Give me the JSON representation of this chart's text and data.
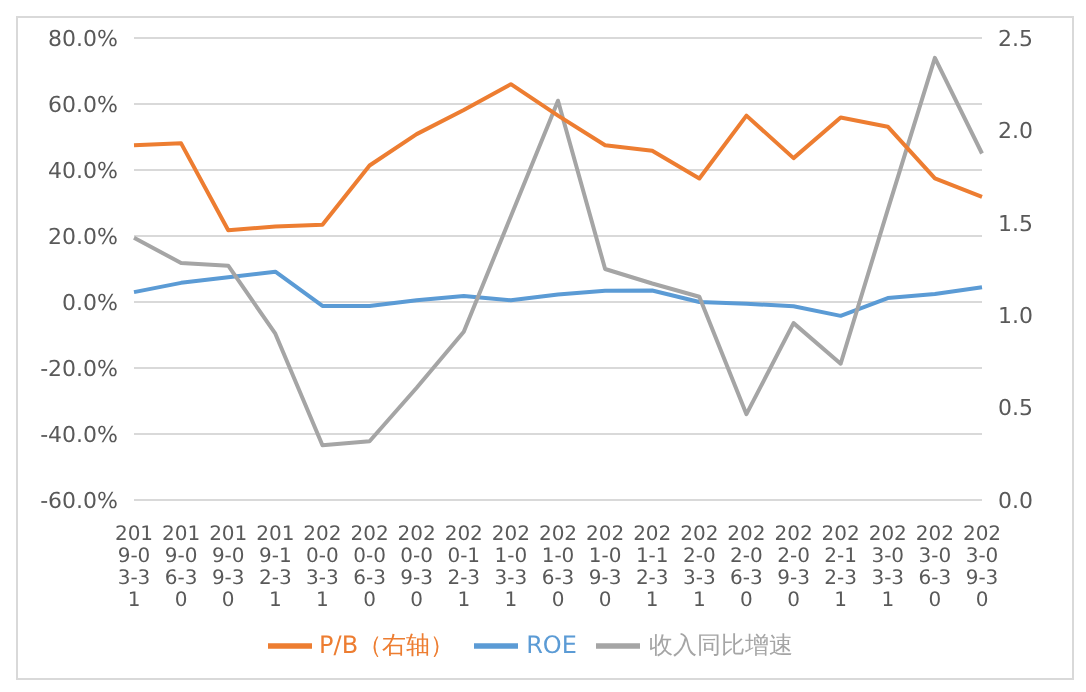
{
  "chart_data": {
    "type": "line",
    "categories": [
      "2019-03-31",
      "2019-06-30",
      "2019-09-30",
      "2019-12-31",
      "2020-03-31",
      "2020-06-30",
      "2020-09-30",
      "2020-12-31",
      "2021-03-31",
      "2021-06-30",
      "2021-09-30",
      "2021-12-31",
      "2022-03-31",
      "2022-06-30",
      "2022-09-30",
      "2022-12-31",
      "2023-03-31",
      "2023-06-30",
      "2023-09-30"
    ],
    "series": [
      {
        "name": "ROE",
        "color": "#5b9bd5",
        "values": [
          3.0,
          5.8,
          7.5,
          9.2,
          -1.2,
          -1.2,
          0.5,
          1.8,
          0.5,
          2.3,
          3.4,
          3.5,
          0,
          -0.5,
          -1.3,
          -4.2,
          1.2,
          2.4,
          4.5
        ]
      },
      {
        "name": "收入同比增速",
        "color": "#a5a5a5",
        "values": [
          19.5,
          11.8,
          11,
          -9.6,
          -43.4,
          -42.2,
          -26,
          -9,
          26,
          61,
          10,
          5.6,
          1.6,
          -34,
          -6.4,
          -18.7,
          28,
          74,
          45
        ]
      },
      {
        "name": "P/B（右轴）",
        "color": "#ed7d31",
        "axis": "y2",
        "values": [
          1.92,
          1.93,
          1.46,
          1.48,
          1.49,
          1.81,
          1.98,
          2.11,
          2.25,
          2.08,
          1.92,
          1.89,
          1.74,
          2.08,
          1.85,
          2.07,
          2.02,
          1.74,
          1.64
        ]
      }
    ],
    "ylim": [
      -60,
      80
    ],
    "yticks": [
      {
        "value": -60,
        "label": "-60.0%"
      },
      {
        "value": -40,
        "label": "-40.0%"
      },
      {
        "value": -20,
        "label": "-20.0%"
      },
      {
        "value": 0,
        "label": "0.0%"
      },
      {
        "value": 20,
        "label": "20.0%"
      },
      {
        "value": 40,
        "label": "40.0%"
      },
      {
        "value": 60,
        "label": "60.0%"
      },
      {
        "value": 80,
        "label": "80.0%"
      }
    ],
    "y2lim": [
      0,
      2.5
    ],
    "y2ticks": [
      {
        "value": 0,
        "label": "0.0"
      },
      {
        "value": 0.5,
        "label": "0.5"
      },
      {
        "value": 1,
        "label": "1.0"
      },
      {
        "value": 1.5,
        "label": "1.5"
      },
      {
        "value": 2,
        "label": "2.0"
      },
      {
        "value": 2.5,
        "label": "2.5"
      }
    ],
    "grid": "y",
    "legend": "bottom",
    "marker": "none",
    "line_style": "solid"
  }
}
